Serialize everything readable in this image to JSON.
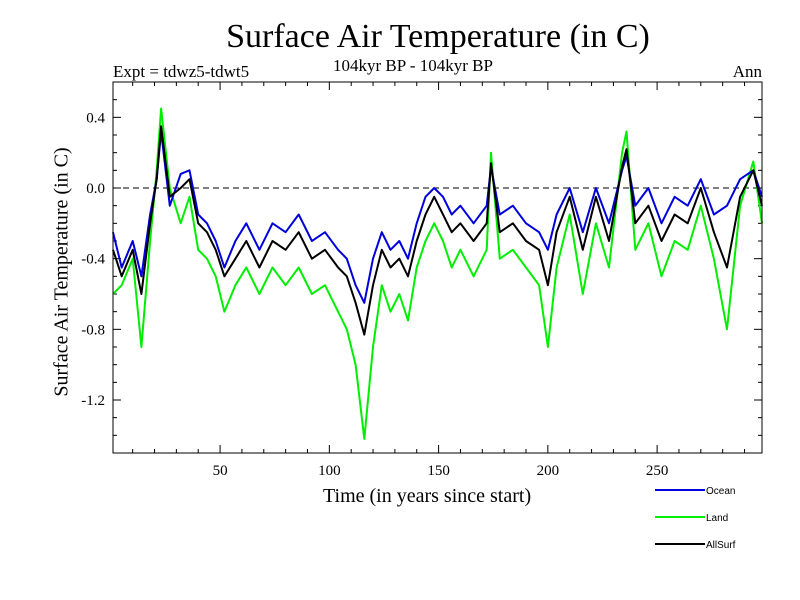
{
  "chart_data": {
    "type": "line",
    "title": "Surface Air Temperature (in C)",
    "subtitle_left": "Expt = tdwz5-tdwt5",
    "subtitle_center": "104kyr BP - 104kyr BP",
    "subtitle_right": "Ann",
    "xlabel": "Time (in years since start)",
    "ylabel": "Surface Air Temperature (in C)",
    "xlim": [
      1,
      298
    ],
    "ylim": [
      -1.5,
      0.6
    ],
    "xticks": [
      50,
      100,
      150,
      200,
      250
    ],
    "yticks": [
      0.4,
      0.0,
      -0.4,
      -0.8,
      -1.2
    ],
    "ytick_labels": [
      "0.4",
      "0.0",
      "-0.4",
      "-0.8",
      "-1.2"
    ],
    "zero_line": {
      "value": 0.0,
      "style": "dashed"
    },
    "legend_position": "bottom-right",
    "series": [
      {
        "name": "Ocean",
        "color": "#0000dd",
        "x": [
          1,
          5,
          10,
          14,
          18,
          21,
          23,
          27,
          32,
          36,
          40,
          44,
          48,
          52,
          57,
          62,
          68,
          74,
          80,
          86,
          92,
          98,
          104,
          108,
          112,
          116,
          120,
          124,
          128,
          132,
          136,
          140,
          144,
          148,
          152,
          156,
          160,
          166,
          172,
          174,
          178,
          184,
          190,
          196,
          200,
          204,
          210,
          216,
          222,
          228,
          234,
          236,
          240,
          246,
          252,
          258,
          264,
          270,
          276,
          282,
          288,
          294,
          298
        ],
        "y": [
          -0.25,
          -0.45,
          -0.3,
          -0.5,
          -0.15,
          0.05,
          0.32,
          -0.1,
          0.08,
          0.1,
          -0.15,
          -0.2,
          -0.3,
          -0.45,
          -0.3,
          -0.2,
          -0.35,
          -0.2,
          -0.25,
          -0.15,
          -0.3,
          -0.25,
          -0.35,
          -0.4,
          -0.55,
          -0.65,
          -0.4,
          -0.25,
          -0.35,
          -0.3,
          -0.4,
          -0.2,
          -0.05,
          0.0,
          -0.05,
          -0.15,
          -0.1,
          -0.2,
          -0.1,
          0.12,
          -0.15,
          -0.1,
          -0.2,
          -0.25,
          -0.35,
          -0.15,
          0.0,
          -0.25,
          0.0,
          -0.2,
          0.1,
          0.18,
          -0.1,
          0.0,
          -0.2,
          -0.05,
          -0.1,
          0.05,
          -0.15,
          -0.1,
          0.05,
          0.1,
          -0.05
        ]
      },
      {
        "name": "Land",
        "color": "#00ee00",
        "x": [
          1,
          5,
          10,
          14,
          18,
          21,
          23,
          27,
          32,
          36,
          40,
          44,
          48,
          52,
          57,
          62,
          68,
          74,
          80,
          86,
          92,
          98,
          104,
          108,
          112,
          116,
          120,
          124,
          128,
          132,
          136,
          140,
          144,
          148,
          152,
          156,
          160,
          166,
          172,
          174,
          178,
          184,
          190,
          196,
          200,
          204,
          210,
          216,
          222,
          228,
          234,
          236,
          240,
          246,
          252,
          258,
          264,
          270,
          276,
          282,
          288,
          294,
          298
        ],
        "y": [
          -0.6,
          -0.55,
          -0.4,
          -0.9,
          -0.3,
          0.1,
          0.45,
          0.0,
          -0.2,
          -0.05,
          -0.35,
          -0.4,
          -0.5,
          -0.7,
          -0.55,
          -0.45,
          -0.6,
          -0.45,
          -0.55,
          -0.45,
          -0.6,
          -0.55,
          -0.7,
          -0.8,
          -1.0,
          -1.42,
          -0.9,
          -0.55,
          -0.7,
          -0.6,
          -0.75,
          -0.45,
          -0.3,
          -0.2,
          -0.3,
          -0.45,
          -0.35,
          -0.5,
          -0.35,
          0.2,
          -0.4,
          -0.35,
          -0.45,
          -0.55,
          -0.9,
          -0.45,
          -0.15,
          -0.6,
          -0.2,
          -0.45,
          0.2,
          0.32,
          -0.35,
          -0.2,
          -0.5,
          -0.3,
          -0.35,
          -0.1,
          -0.4,
          -0.8,
          -0.1,
          0.15,
          -0.2
        ]
      },
      {
        "name": "AllSurf",
        "color": "#000000",
        "x": [
          1,
          5,
          10,
          14,
          18,
          21,
          23,
          27,
          32,
          36,
          40,
          44,
          48,
          52,
          57,
          62,
          68,
          74,
          80,
          86,
          92,
          98,
          104,
          108,
          112,
          116,
          120,
          124,
          128,
          132,
          136,
          140,
          144,
          148,
          152,
          156,
          160,
          166,
          172,
          174,
          178,
          184,
          190,
          196,
          200,
          204,
          210,
          216,
          222,
          228,
          234,
          236,
          240,
          246,
          252,
          258,
          264,
          270,
          276,
          282,
          288,
          294,
          298
        ],
        "y": [
          -0.35,
          -0.5,
          -0.35,
          -0.6,
          -0.2,
          0.05,
          0.35,
          -0.05,
          0.0,
          0.05,
          -0.2,
          -0.25,
          -0.35,
          -0.5,
          -0.4,
          -0.3,
          -0.45,
          -0.3,
          -0.35,
          -0.25,
          -0.4,
          -0.35,
          -0.45,
          -0.5,
          -0.65,
          -0.83,
          -0.55,
          -0.35,
          -0.45,
          -0.4,
          -0.5,
          -0.3,
          -0.15,
          -0.05,
          -0.15,
          -0.25,
          -0.2,
          -0.3,
          -0.2,
          0.14,
          -0.25,
          -0.2,
          -0.3,
          -0.35,
          -0.55,
          -0.25,
          -0.05,
          -0.35,
          -0.05,
          -0.3,
          0.12,
          0.22,
          -0.2,
          -0.1,
          -0.3,
          -0.15,
          -0.2,
          0.0,
          -0.25,
          -0.45,
          -0.05,
          0.1,
          -0.1
        ]
      }
    ]
  }
}
